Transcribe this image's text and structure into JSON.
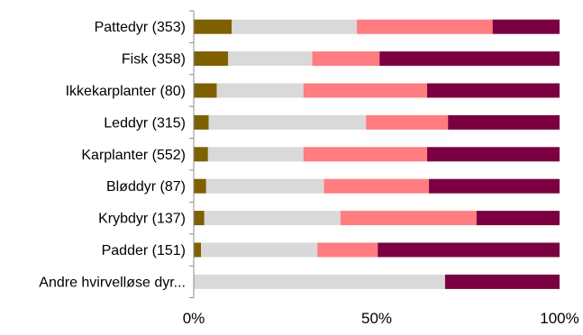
{
  "chart_data": {
    "type": "bar",
    "orientation": "horizontal",
    "stacked": "percent",
    "categories": [
      "Pattedyr (353)",
      "Fisk (358)",
      "Ikkekarplanter (80)",
      "Leddyr (315)",
      "Karplanter (552)",
      "Bløddyr (87)",
      "Krybdyr (137)",
      "Padder (151)",
      "Andre hvirvelløse dyr..."
    ],
    "series": [
      {
        "color": "#7f6000",
        "values": [
          10.4,
          9.4,
          6.3,
          4.1,
          3.9,
          3.4,
          2.9,
          2.0,
          0.0
        ]
      },
      {
        "color": "#d9d9d9",
        "values": [
          34.2,
          23.0,
          23.7,
          43.0,
          26.1,
          32.2,
          37.2,
          31.8,
          68.7
        ]
      },
      {
        "color": "#ff7c80",
        "values": [
          37.1,
          18.4,
          33.8,
          22.4,
          33.8,
          28.7,
          37.2,
          16.5,
          0.0
        ]
      },
      {
        "color": "#7b0041",
        "values": [
          18.3,
          49.2,
          36.2,
          30.5,
          36.2,
          35.7,
          22.7,
          49.7,
          31.3
        ]
      }
    ],
    "x_ticks": [
      "0%",
      "50%",
      "100%"
    ],
    "xlim": [
      0,
      100
    ],
    "grid": false,
    "legend": "none"
  }
}
